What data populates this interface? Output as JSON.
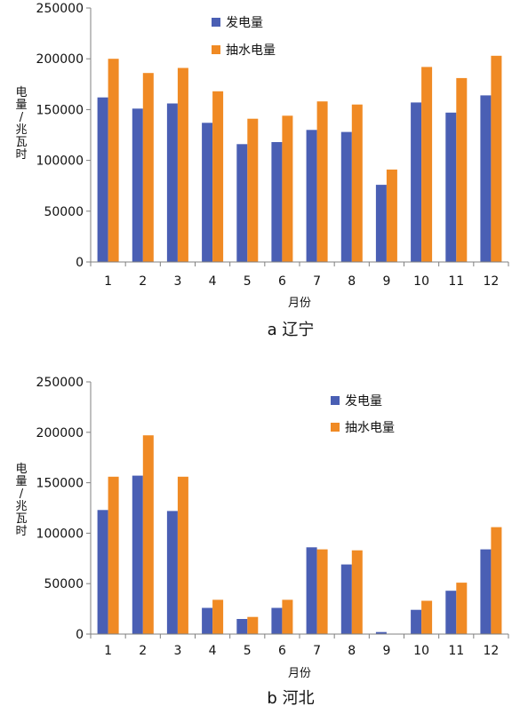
{
  "colors": {
    "generation": "#4a5fb4",
    "pumping": "#f08a24",
    "axis": "#808080",
    "text": "#111111"
  },
  "chart_data": [
    {
      "type": "bar",
      "caption": "a 辽宁",
      "xlabel": "月份",
      "ylabel": "电量/兆瓦时",
      "ylim": [
        0,
        250000
      ],
      "y_ticks": [
        "0",
        "50000",
        "100000",
        "150000",
        "200000",
        "250000"
      ],
      "categories": [
        "1",
        "2",
        "3",
        "4",
        "5",
        "6",
        "7",
        "8",
        "9",
        "10",
        "11",
        "12"
      ],
      "legend_position": "top-right",
      "grid": false,
      "series": [
        {
          "name": "发电量",
          "values": [
            162000,
            151000,
            156000,
            137000,
            116000,
            118000,
            130000,
            128000,
            76000,
            157000,
            147000,
            164000
          ]
        },
        {
          "name": "抽水电量",
          "values": [
            200000,
            186000,
            191000,
            168000,
            141000,
            144000,
            158000,
            155000,
            91000,
            192000,
            181000,
            203000
          ]
        }
      ]
    },
    {
      "type": "bar",
      "caption": "b 河北",
      "xlabel": "月份",
      "ylabel": "电量/兆瓦时",
      "ylim": [
        0,
        250000
      ],
      "y_ticks": [
        "0",
        "50000",
        "100000",
        "150000",
        "200000",
        "250000"
      ],
      "categories": [
        "1",
        "2",
        "3",
        "4",
        "5",
        "6",
        "7",
        "8",
        "9",
        "10",
        "11",
        "12"
      ],
      "legend_position": "top-right",
      "grid": false,
      "series": [
        {
          "name": "发电量",
          "values": [
            123000,
            157000,
            122000,
            26000,
            15000,
            26000,
            86000,
            69000,
            2000,
            24000,
            43000,
            84000
          ]
        },
        {
          "name": "抽水电量",
          "values": [
            156000,
            197000,
            156000,
            34000,
            17000,
            34000,
            84000,
            83000,
            0,
            33000,
            51000,
            106000
          ]
        }
      ]
    }
  ]
}
